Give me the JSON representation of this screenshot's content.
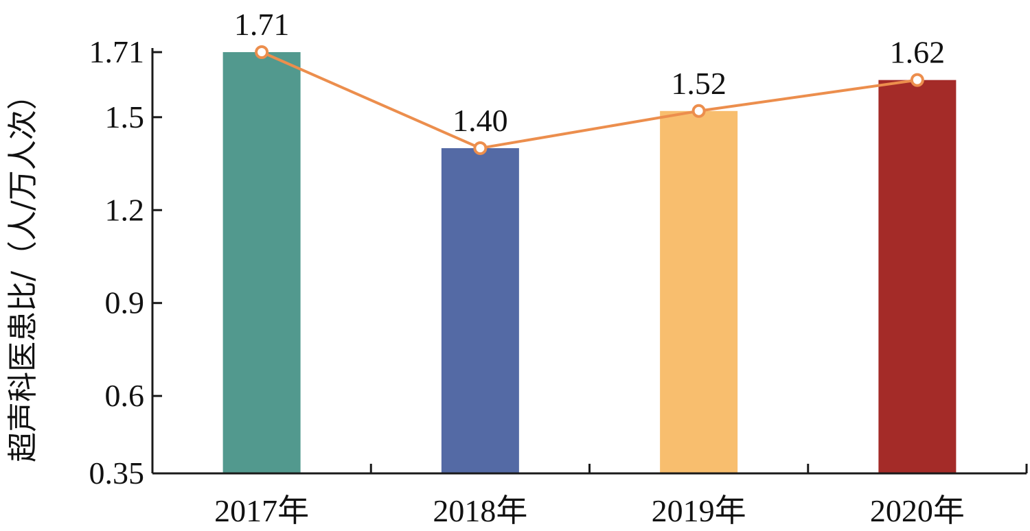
{
  "chart_data": {
    "type": "bar",
    "categories": [
      "2017年",
      "2018年",
      "2019年",
      "2020年"
    ],
    "values": [
      1.71,
      1.4,
      1.52,
      1.62
    ],
    "value_labels": [
      "1.71",
      "1.40",
      "1.52",
      "1.62"
    ],
    "bar_colors": [
      "#52998e",
      "#546aa5",
      "#f8be6e",
      "#a42b28"
    ],
    "line_overlay": {
      "values": [
        1.71,
        1.4,
        1.52,
        1.62
      ],
      "color": "#ec8e4d",
      "marker": "hollow-circle"
    },
    "title": "",
    "xlabel": "",
    "ylabel": "超声科医患比/（人/万人次）",
    "ylim": [
      0.35,
      1.71
    ],
    "yticks": [
      0.35,
      0.6,
      0.9,
      1.2,
      1.5,
      1.71
    ],
    "ytick_labels": [
      "0.35",
      "0.6",
      "0.9",
      "1.2",
      "1.5",
      "1.71"
    ],
    "grid": false,
    "legend": "none"
  }
}
